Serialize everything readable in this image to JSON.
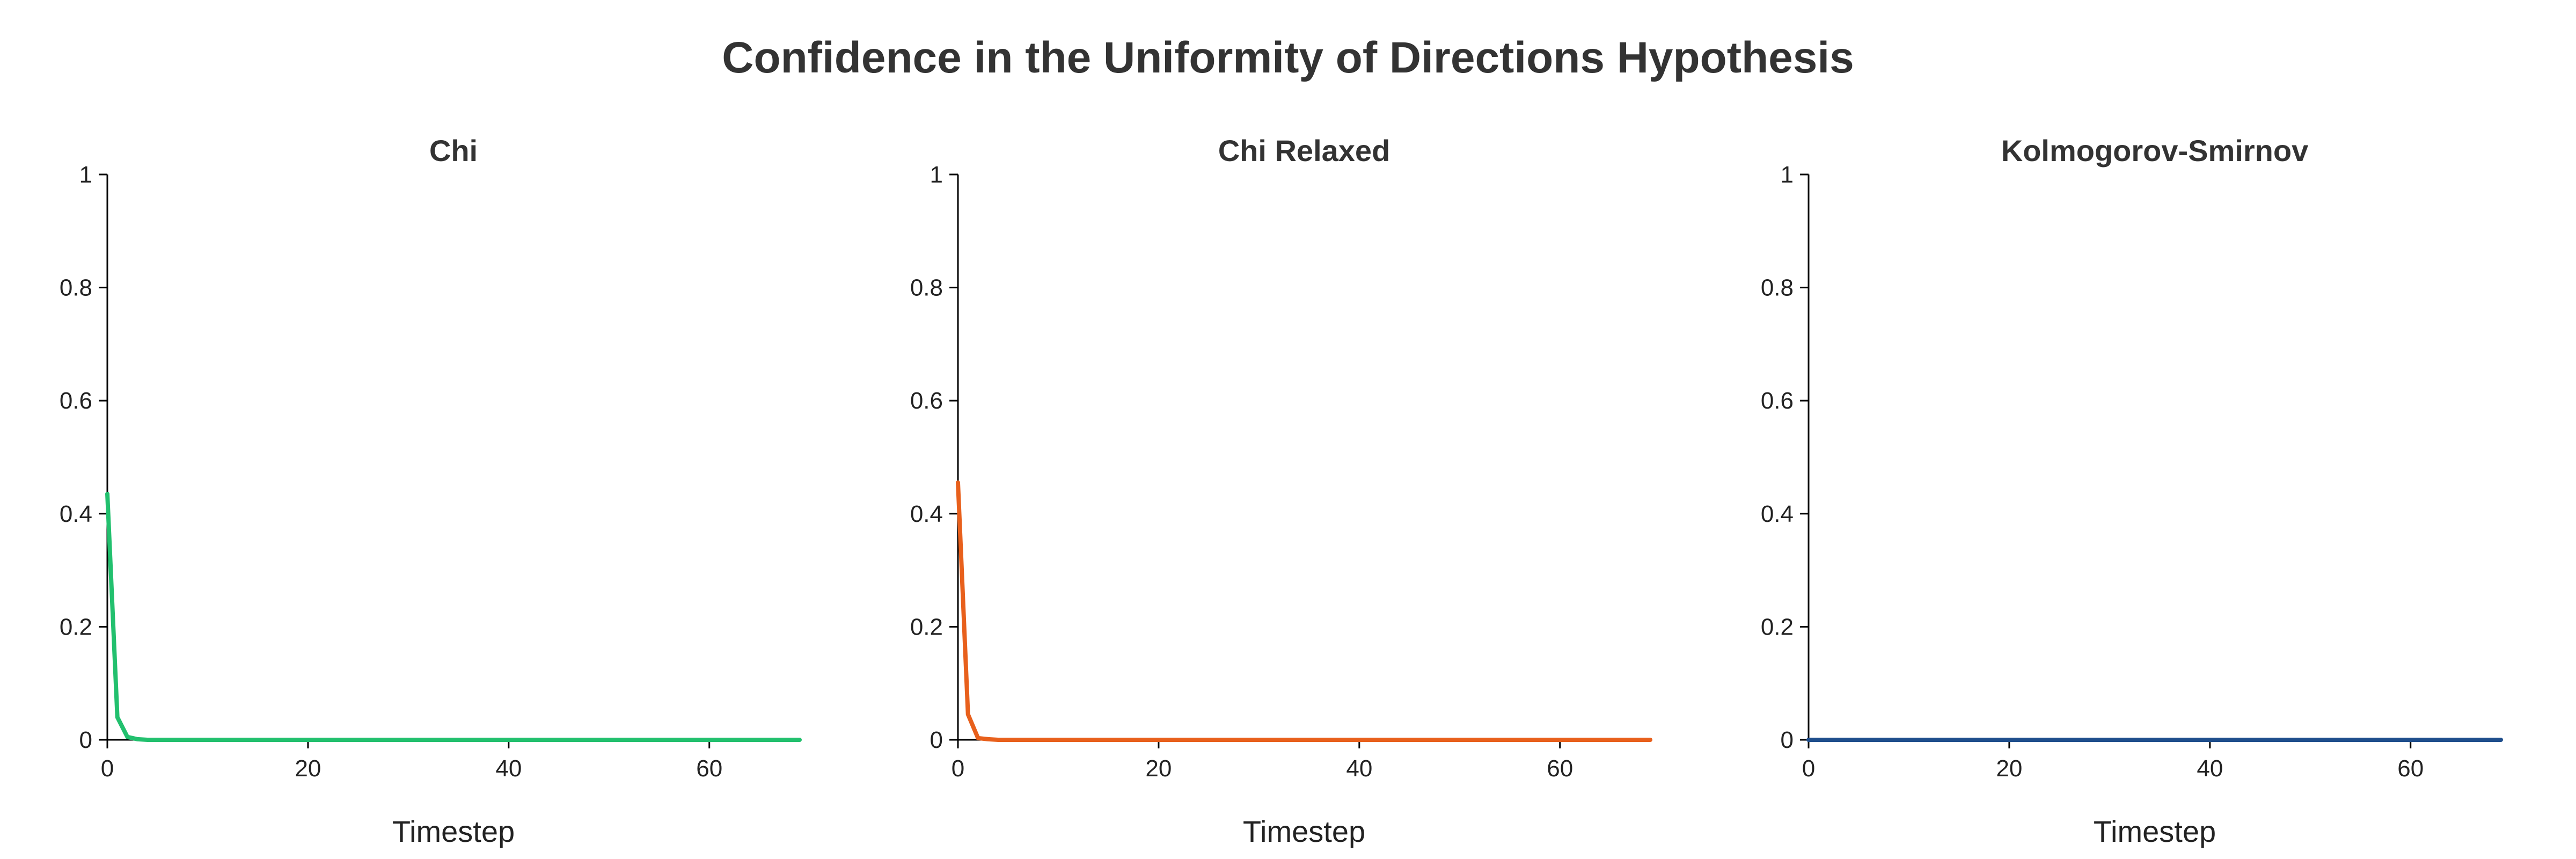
{
  "title": "Confidence in the Uniformity of Directions Hypothesis",
  "chart_data": [
    {
      "type": "line",
      "title": "Chi",
      "xlabel": "Timestep",
      "ylabel": "",
      "xlim": [
        0,
        69
      ],
      "ylim": [
        0,
        1
      ],
      "xticks": [
        0,
        20,
        40,
        60
      ],
      "yticks": [
        0,
        0.2,
        0.4,
        0.6,
        0.8,
        1
      ],
      "ytick_labels": [
        "0",
        "0.2",
        "0.4",
        "0.6",
        "0.8",
        "1"
      ],
      "grid": false,
      "color": "#22c06e",
      "x": [
        0,
        1,
        2,
        3,
        4,
        5,
        10,
        20,
        30,
        40,
        50,
        60,
        69
      ],
      "values": [
        0.435,
        0.04,
        0.005,
        0.001,
        0,
        0,
        0,
        0,
        0,
        0,
        0,
        0,
        0
      ]
    },
    {
      "type": "line",
      "title": "Chi Relaxed",
      "xlabel": "Timestep",
      "ylabel": "",
      "xlim": [
        0,
        69
      ],
      "ylim": [
        0,
        1
      ],
      "xticks": [
        0,
        20,
        40,
        60
      ],
      "yticks": [
        0,
        0.2,
        0.4,
        0.6,
        0.8,
        1
      ],
      "ytick_labels": [
        "0",
        "0.2",
        "0.4",
        "0.6",
        "0.8",
        "1"
      ],
      "grid": false,
      "color": "#e8601c",
      "x": [
        0,
        1,
        2,
        3,
        4,
        5,
        10,
        20,
        30,
        40,
        50,
        60,
        69
      ],
      "values": [
        0.455,
        0.045,
        0.003,
        0.001,
        0,
        0,
        0,
        0,
        0,
        0,
        0,
        0,
        0
      ]
    },
    {
      "type": "line",
      "title": "Kolmogorov-Smirnov",
      "xlabel": "Timestep",
      "ylabel": "",
      "xlim": [
        0,
        69
      ],
      "ylim": [
        0,
        1
      ],
      "xticks": [
        0,
        20,
        40,
        60
      ],
      "yticks": [
        0,
        0.2,
        0.4,
        0.6,
        0.8,
        1
      ],
      "ytick_labels": [
        "0",
        "0.2",
        "0.4",
        "0.6",
        "0.8",
        "1"
      ],
      "grid": false,
      "color": "#1f4e8c",
      "x": [
        0,
        10,
        20,
        30,
        40,
        50,
        60,
        69
      ],
      "values": [
        0,
        0,
        0,
        0,
        0,
        0,
        0,
        0
      ]
    }
  ]
}
